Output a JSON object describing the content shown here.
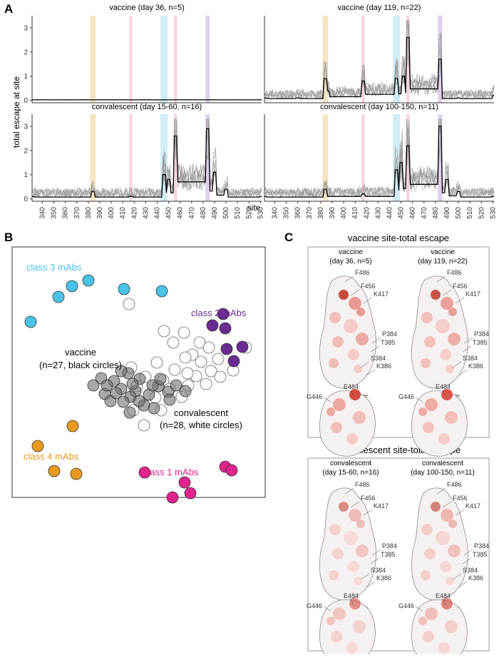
{
  "panel_a": {
    "letter": "A",
    "ylabel": "total escape at site",
    "xlabel": "site",
    "y_ticks": [
      "0",
      "1",
      "2",
      "3"
    ],
    "x_ticks": [
      "340",
      "350",
      "360",
      "370",
      "380",
      "390",
      "400",
      "410",
      "420",
      "430",
      "440",
      "450",
      "460",
      "470",
      "480",
      "490",
      "500",
      "510",
      "520",
      "530"
    ],
    "facets": [
      {
        "title": "vaccine (day 36, n=5)"
      },
      {
        "title": "vaccine (day 119, n=22)"
      },
      {
        "title": "convalescent (day 15-60, n=16)"
      },
      {
        "title": "convalescent (day 100-150, n=11)"
      }
    ],
    "highlight_colors": {
      "class4": "#f5deb3",
      "class1": "#f7c6d9",
      "class3": "#c6e9f5",
      "class2": "#d4c4e8"
    }
  },
  "chart_data": [
    {
      "type": "line",
      "title": "vaccine (day 36, n=5)",
      "xlabel": "site",
      "ylabel": "total escape at site",
      "xlim": [
        331,
        531
      ],
      "ylim": [
        -0.1,
        3.5
      ],
      "highlighted_sites": [
        384,
        417,
        446,
        456,
        484
      ],
      "series": [
        {
          "values": [
            [
              331,
              0.02
            ],
            [
              384,
              0.03
            ],
            [
              417,
              0.02
            ],
            [
              446,
              0.03
            ],
            [
              456,
              0.02
            ],
            [
              484,
              0.03
            ],
            [
              531,
              0.02
            ]
          ]
        }
      ]
    },
    {
      "type": "line",
      "title": "vaccine (day 119, n=22)",
      "xlabel": "site",
      "ylabel": "total escape at site",
      "xlim": [
        331,
        531
      ],
      "ylim": [
        -0.1,
        3.5
      ],
      "series": [
        {
          "values": [
            [
              331,
              0.1
            ],
            [
              360,
              0.1
            ],
            [
              384,
              0.9
            ],
            [
              386,
              0.4
            ],
            [
              417,
              0.8
            ],
            [
              446,
              0.9
            ],
            [
              452,
              1.0
            ],
            [
              456,
              2.6
            ],
            [
              484,
              1.7
            ],
            [
              500,
              0.1
            ],
            [
              531,
              0.2
            ]
          ]
        }
      ]
    },
    {
      "type": "line",
      "title": "convalescent (day 15-60, n=16)",
      "xlabel": "site",
      "ylabel": "total escape at site",
      "xlim": [
        331,
        531
      ],
      "ylim": [
        -0.1,
        3.5
      ],
      "series": [
        {
          "values": [
            [
              331,
              0.1
            ],
            [
              384,
              0.3
            ],
            [
              417,
              0.1
            ],
            [
              446,
              1.0
            ],
            [
              450,
              0.8
            ],
            [
              456,
              2.6
            ],
            [
              484,
              2.9
            ],
            [
              490,
              1.1
            ],
            [
              500,
              0.4
            ],
            [
              531,
              0.1
            ]
          ]
        }
      ]
    },
    {
      "type": "line",
      "title": "convalescent (day 100-150, n=11)",
      "xlabel": "site",
      "ylabel": "total escape at site",
      "xlim": [
        331,
        531
      ],
      "ylim": [
        -0.1,
        3.5
      ],
      "series": [
        {
          "values": [
            [
              331,
              0.1
            ],
            [
              384,
              0.4
            ],
            [
              417,
              0.2
            ],
            [
              446,
              1.2
            ],
            [
              450,
              1.5
            ],
            [
              456,
              2.2
            ],
            [
              484,
              3.0
            ],
            [
              490,
              0.8
            ],
            [
              500,
              0.3
            ],
            [
              531,
              0.1
            ]
          ]
        }
      ]
    }
  ],
  "panel_b": {
    "letter": "B",
    "labels": {
      "class3": "class 3 mAbs",
      "class2": "class 2 mAbs",
      "class4": "class 4 mAbs",
      "class1": "class 1 mAbs",
      "vaccine_line1": "vaccine",
      "vaccine_line2": "(n=27, black circles)",
      "conv_line1": "convalescent",
      "conv_line2": "(n=28, white circles)"
    },
    "colors": {
      "class3": "#4ac3e8",
      "class2": "#6a2c91",
      "class4": "#e89a1e",
      "class1": "#e0248c",
      "vaccine": "#6e6e6e"
    }
  },
  "panel_c": {
    "letter": "C",
    "vaccine_box": {
      "title": "vaccine site-total escape",
      "col1_l1": "vaccine",
      "col1_l2": "(day 36, n=5)",
      "col2_l1": "vaccine",
      "col2_l2": "(day 119, n=22)"
    },
    "conv_box": {
      "title": "convalescent site-total escape",
      "col1_l1": "convalescent",
      "col1_l2": "(day 15-60, n=16)",
      "col2_l1": "convalescent",
      "col2_l2": "(day 100-150, n=11)"
    },
    "site_labels": {
      "f486": "F486",
      "f456": "F456",
      "k417": "K417",
      "p384": "P384",
      "t385": "T385",
      "s384": "S384",
      "k386": "K386",
      "g446": "G446",
      "e484": "E484"
    },
    "rotate": "rotate"
  }
}
